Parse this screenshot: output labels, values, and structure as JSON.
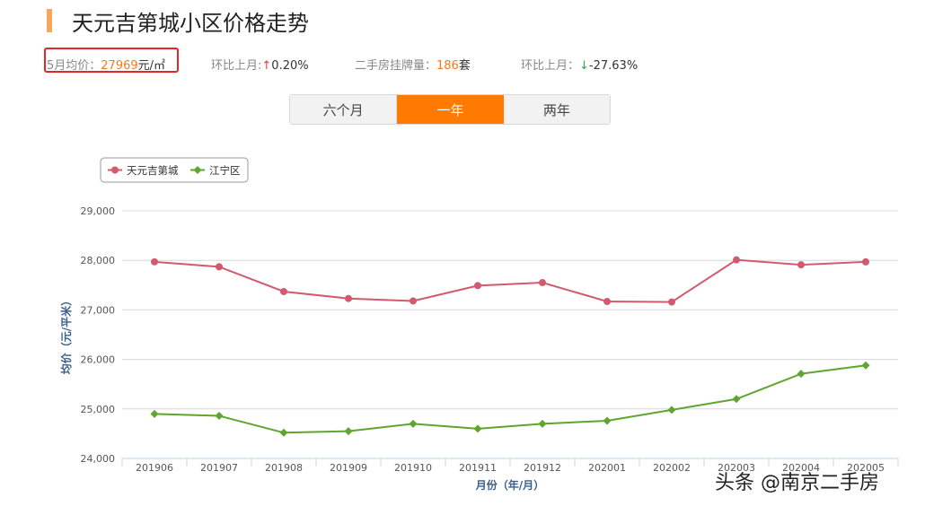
{
  "header": {
    "title": "天元吉第城小区价格走势",
    "accent_color": "#f7a75b"
  },
  "stats": {
    "avg_price_label": "5月均价：",
    "avg_price_value": "27969",
    "avg_price_unit": "元/㎡",
    "mom_label": "环比上月:",
    "mom_arrow": "↑",
    "mom_value": "0.20%",
    "listing_label": "二手房挂牌量：",
    "listing_value": "186",
    "listing_unit": "套",
    "mom2_label": "环比上月：",
    "mom2_arrow": "↓",
    "mom2_value": "-27.63%"
  },
  "tabs": [
    {
      "label": "六个月",
      "active": false
    },
    {
      "label": "一年",
      "active": true
    },
    {
      "label": "两年",
      "active": false
    }
  ],
  "watermark": "头条 @南京二手房",
  "chart_data": {
    "type": "line",
    "categories": [
      "201906",
      "201907",
      "201908",
      "201909",
      "201910",
      "201911",
      "201912",
      "202001",
      "202002",
      "202003",
      "202004",
      "202005"
    ],
    "series": [
      {
        "name": "天元吉第城",
        "color": "#d35a6e",
        "marker": "circle",
        "values": [
          27970,
          27870,
          27370,
          27230,
          27180,
          27490,
          27550,
          27170,
          27160,
          28010,
          27910,
          27969
        ]
      },
      {
        "name": "江宁区",
        "color": "#5fa52e",
        "marker": "diamond",
        "values": [
          24900,
          24860,
          24520,
          24550,
          24700,
          24600,
          24700,
          24760,
          24980,
          25200,
          25710,
          25880
        ]
      }
    ],
    "ylim": [
      24000,
      29000
    ],
    "yticks": [
      24000,
      25000,
      26000,
      27000,
      28000,
      29000
    ],
    "ytick_labels": [
      "24,000",
      "25,000",
      "26,000",
      "27,000",
      "28,000",
      "29,000"
    ],
    "xlabel": "月份（年/月）",
    "ylabel": "均价（元/平米）",
    "grid": true,
    "legend_position": "top-left"
  }
}
